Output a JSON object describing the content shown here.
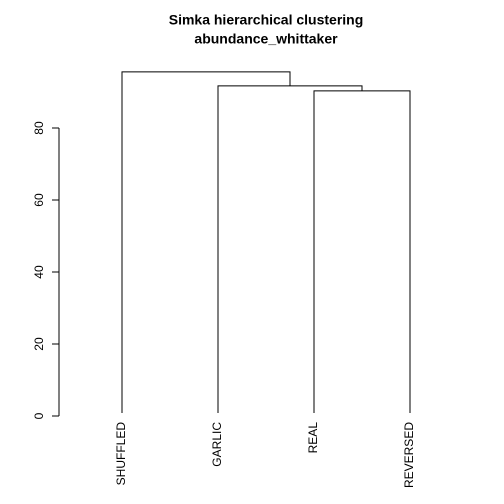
{
  "chart_data": {
    "type": "dendrogram",
    "title": "Simka hierarchical clustering",
    "subtitle": "abundance_whittaker",
    "categories": [
      "SHUFFLED",
      "GARLIC",
      "REAL",
      "REVERSED"
    ],
    "merge_heights": [
      95.6,
      91.7,
      90.3
    ],
    "ylim": [
      0,
      80
    ],
    "yticks": [
      0,
      20,
      40,
      60,
      80
    ],
    "color": "#000000"
  }
}
